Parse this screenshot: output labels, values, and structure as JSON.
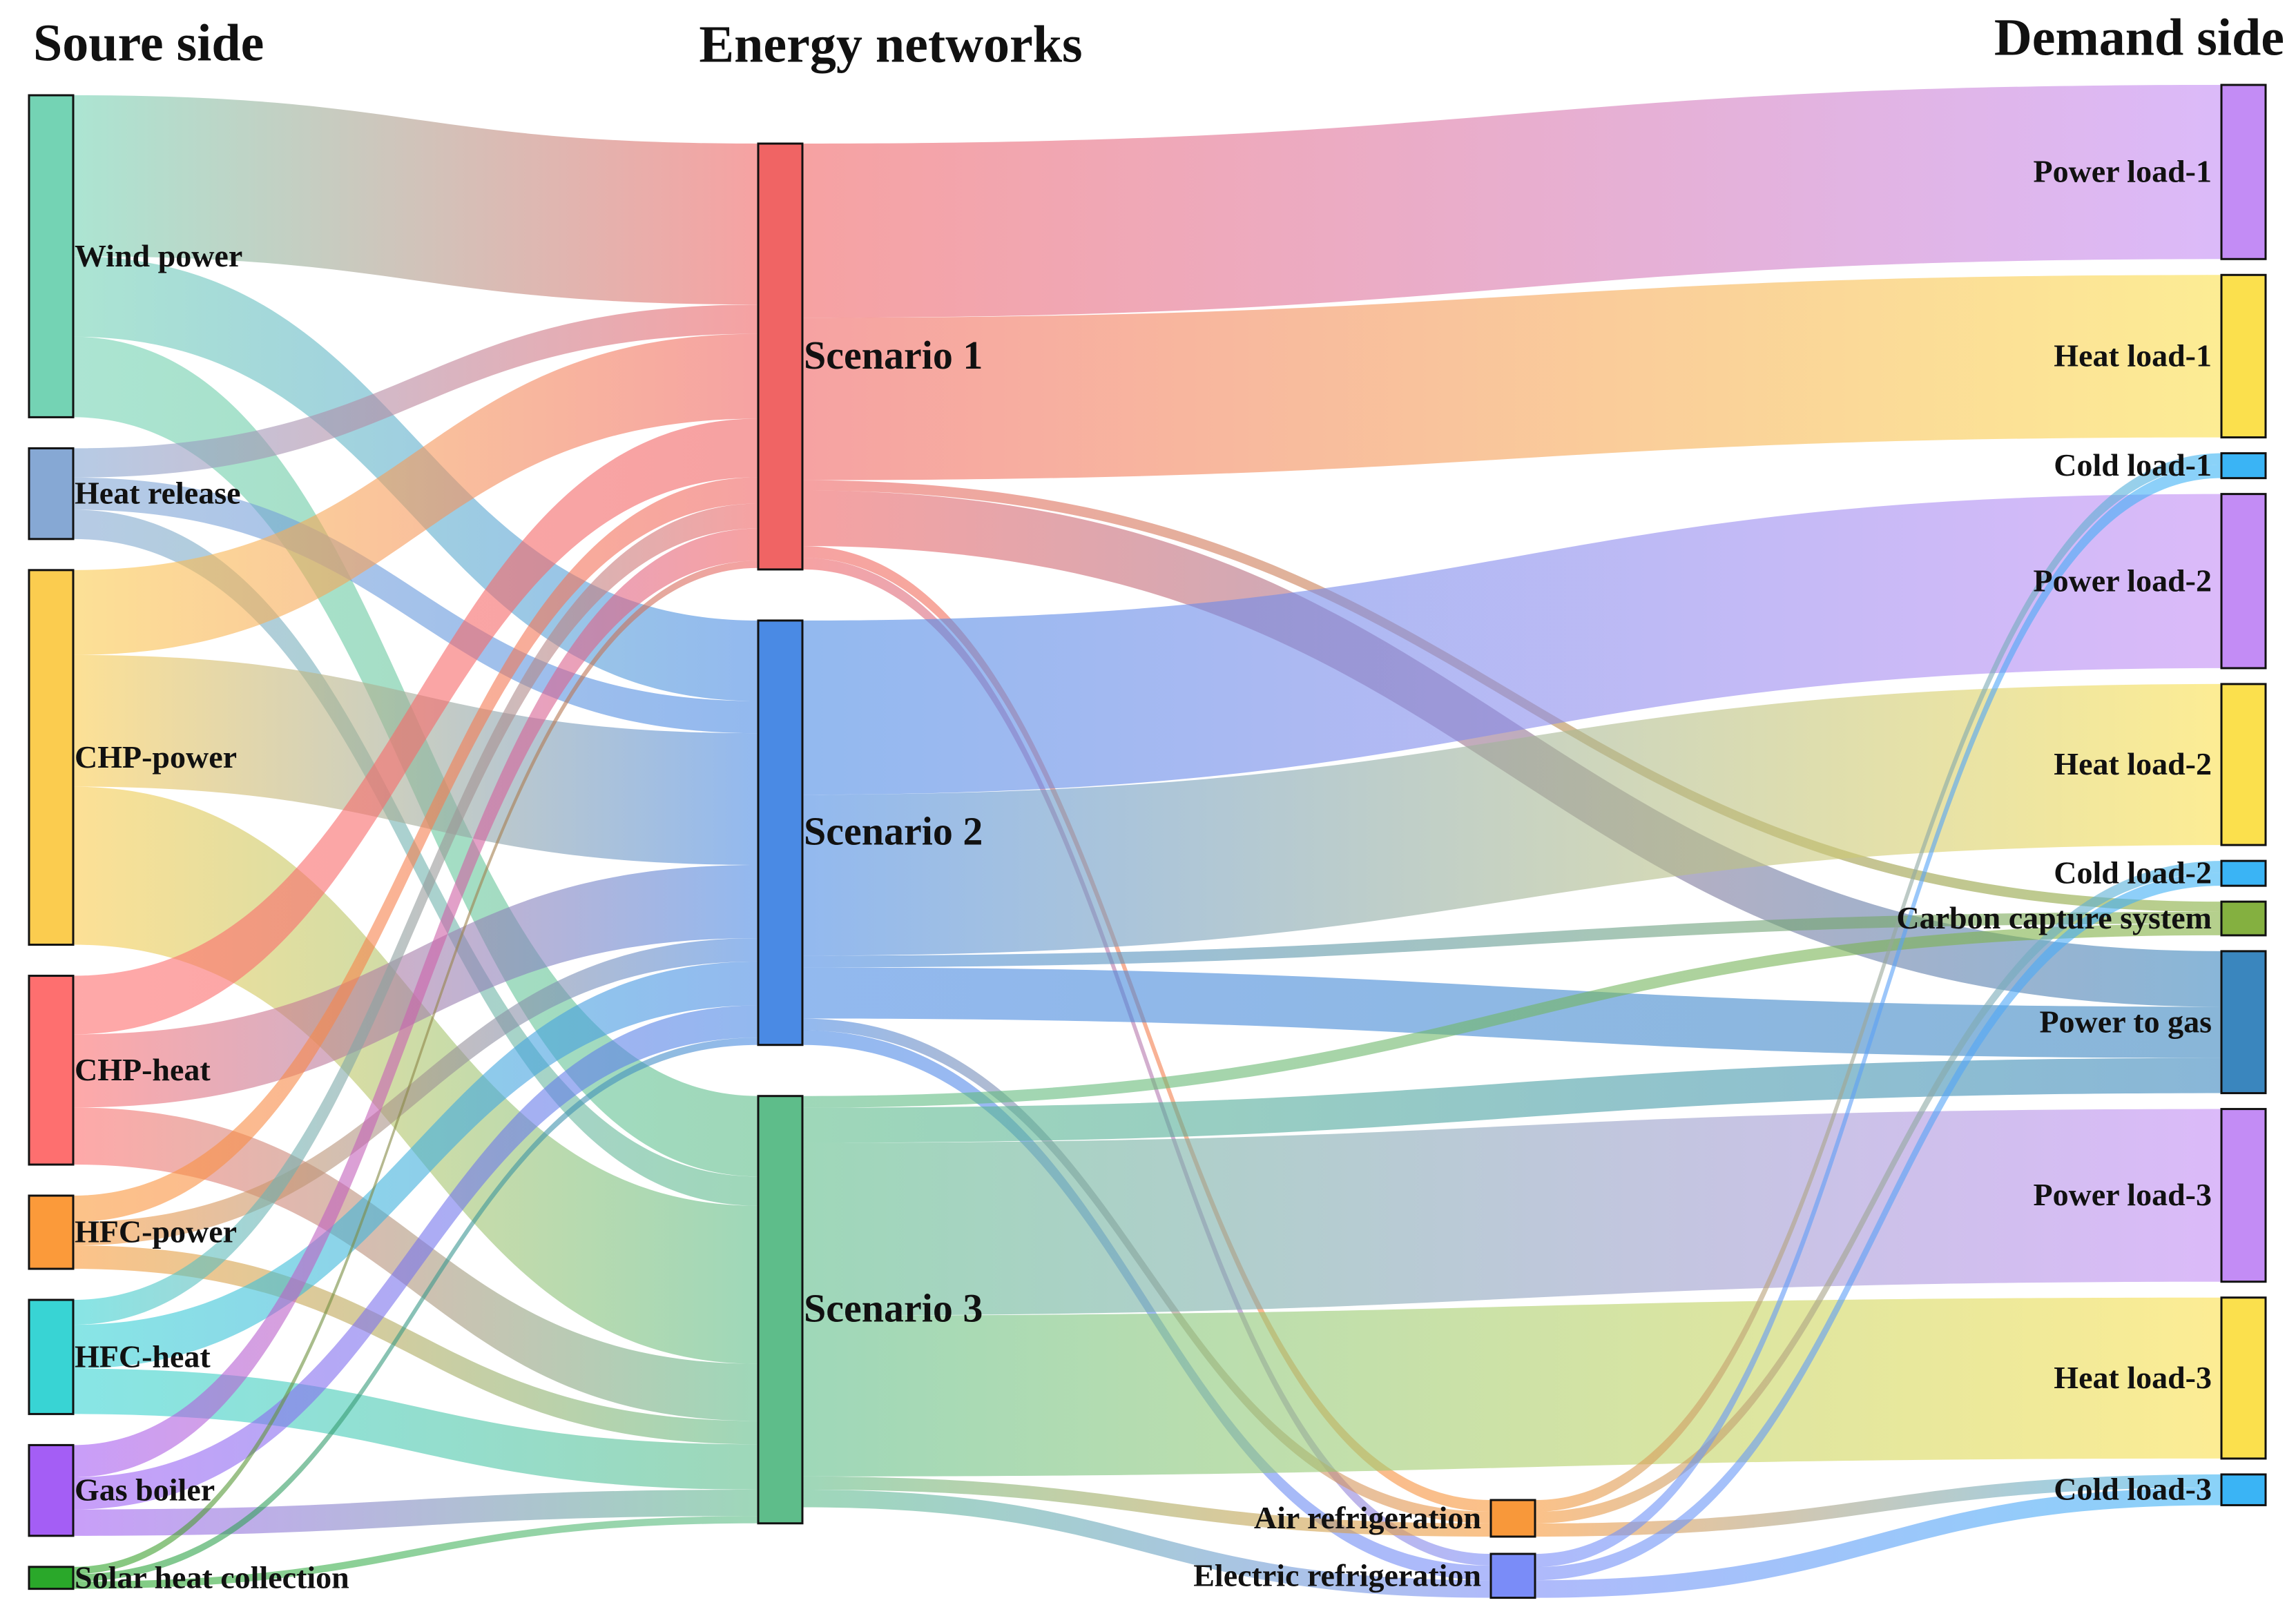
{
  "chart_data": {
    "type": "sankey",
    "column_titles": [
      "Soure side",
      "Energy networks",
      "Demand side"
    ],
    "nodes": [
      {
        "name": "Wind power",
        "color": "#74d3b4"
      },
      {
        "name": "Heat release",
        "color": "#86a8d4"
      },
      {
        "name": "CHP-power",
        "color": "#fbcc4f"
      },
      {
        "name": "CHP-heat",
        "color": "#fe6f6f"
      },
      {
        "name": "HFC-power",
        "color": "#fb9a3a"
      },
      {
        "name": "HFC-heat",
        "color": "#38d4d4"
      },
      {
        "name": "Gas boiler",
        "color": "#a45ef5"
      },
      {
        "name": "Solar heat collection",
        "color": "#2aa82a"
      },
      {
        "name": "Scenario 1",
        "color": "#f06464"
      },
      {
        "name": "Scenario 2",
        "color": "#4a8ae4"
      },
      {
        "name": "Scenario 3",
        "color": "#5ebd8a"
      },
      {
        "name": "Air refrigeration",
        "color": "#f8983a"
      },
      {
        "name": "Electric refrigeration",
        "color": "#7a8cf8"
      },
      {
        "name": "Power load-1",
        "color": "#c38cf5"
      },
      {
        "name": "Heat load-1",
        "color": "#fbe04d"
      },
      {
        "name": "Cold load-1",
        "color": "#3ab4f5"
      },
      {
        "name": "Power load-2",
        "color": "#c38cf5"
      },
      {
        "name": "Heat load-2",
        "color": "#fbe04d"
      },
      {
        "name": "Cold load-2",
        "color": "#3ab4f5"
      },
      {
        "name": "Carbon capture system",
        "color": "#84b040"
      },
      {
        "name": "Power to gas",
        "color": "#3a86be"
      },
      {
        "name": "Power load-3",
        "color": "#c38cf5"
      },
      {
        "name": "Heat load-3",
        "color": "#fbe04d"
      },
      {
        "name": "Cold load-3",
        "color": "#3ab4f5"
      }
    ],
    "links": [
      {
        "source": 0,
        "target": 8,
        "value": 110
      },
      {
        "source": 0,
        "target": 9,
        "value": 55
      },
      {
        "source": 0,
        "target": 10,
        "value": 55
      },
      {
        "source": 1,
        "target": 8,
        "value": 20
      },
      {
        "source": 1,
        "target": 9,
        "value": 22
      },
      {
        "source": 1,
        "target": 10,
        "value": 20
      },
      {
        "source": 2,
        "target": 8,
        "value": 58
      },
      {
        "source": 2,
        "target": 9,
        "value": 90
      },
      {
        "source": 2,
        "target": 10,
        "value": 108
      },
      {
        "source": 3,
        "target": 8,
        "value": 40
      },
      {
        "source": 3,
        "target": 9,
        "value": 50
      },
      {
        "source": 3,
        "target": 10,
        "value": 39
      },
      {
        "source": 4,
        "target": 8,
        "value": 18
      },
      {
        "source": 4,
        "target": 9,
        "value": 16
      },
      {
        "source": 4,
        "target": 10,
        "value": 16
      },
      {
        "source": 5,
        "target": 8,
        "value": 17
      },
      {
        "source": 5,
        "target": 9,
        "value": 30
      },
      {
        "source": 5,
        "target": 10,
        "value": 31
      },
      {
        "source": 6,
        "target": 8,
        "value": 22
      },
      {
        "source": 6,
        "target": 9,
        "value": 22
      },
      {
        "source": 6,
        "target": 10,
        "value": 18
      },
      {
        "source": 7,
        "target": 8,
        "value": 5
      },
      {
        "source": 7,
        "target": 9,
        "value": 5
      },
      {
        "source": 7,
        "target": 10,
        "value": 5
      },
      {
        "source": 8,
        "target": 13,
        "value": 119
      },
      {
        "source": 8,
        "target": 14,
        "value": 111
      },
      {
        "source": 8,
        "target": 19,
        "value": 7
      },
      {
        "source": 8,
        "target": 20,
        "value": 38
      },
      {
        "source": 8,
        "target": 11,
        "value": 8
      },
      {
        "source": 8,
        "target": 12,
        "value": 8
      },
      {
        "source": 9,
        "target": 16,
        "value": 119
      },
      {
        "source": 9,
        "target": 17,
        "value": 110
      },
      {
        "source": 9,
        "target": 19,
        "value": 8
      },
      {
        "source": 9,
        "target": 20,
        "value": 35
      },
      {
        "source": 9,
        "target": 11,
        "value": 8
      },
      {
        "source": 9,
        "target": 12,
        "value": 10
      },
      {
        "source": 10,
        "target": 19,
        "value": 8
      },
      {
        "source": 10,
        "target": 20,
        "value": 24
      },
      {
        "source": 10,
        "target": 21,
        "value": 118
      },
      {
        "source": 10,
        "target": 22,
        "value": 110
      },
      {
        "source": 10,
        "target": 11,
        "value": 9
      },
      {
        "source": 10,
        "target": 12,
        "value": 12
      },
      {
        "source": 11,
        "target": 15,
        "value": 8
      },
      {
        "source": 11,
        "target": 18,
        "value": 8
      },
      {
        "source": 11,
        "target": 23,
        "value": 9
      },
      {
        "source": 12,
        "target": 15,
        "value": 9
      },
      {
        "source": 12,
        "target": 18,
        "value": 9
      },
      {
        "source": 12,
        "target": 23,
        "value": 12
      }
    ]
  }
}
